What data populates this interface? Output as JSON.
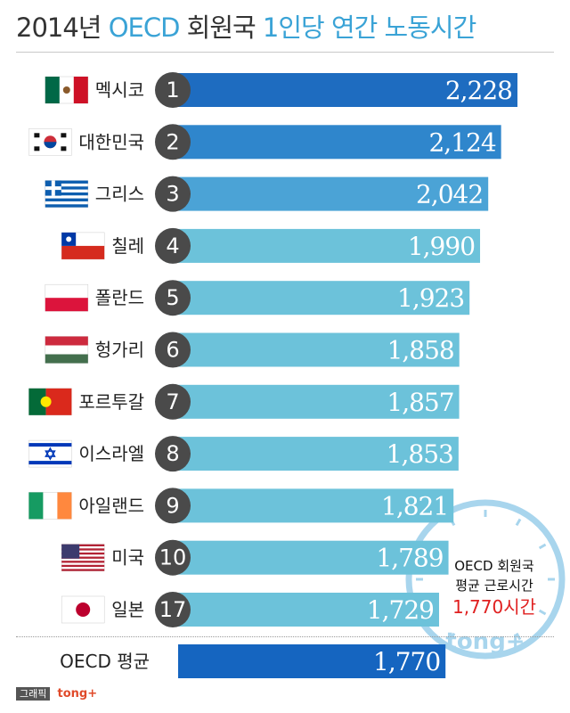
{
  "header": {
    "title_part1": "2014년",
    "title_hl1": "OECD",
    "title_part2": "회원국",
    "title_hl2": "1인당 연간 노동시간"
  },
  "colors": {
    "top": "#1e6cc0",
    "second": "#2f86cc",
    "third": "#4ba3d6",
    "rest": "#6cc2da",
    "avg": "#1565c0",
    "rank_circle": "#4a4a4a",
    "watermark": "#8cc7e8"
  },
  "chart_data": {
    "type": "bar",
    "orientation": "horizontal",
    "categories": [
      "멕시코",
      "대한민국",
      "그리스",
      "칠레",
      "폴란드",
      "헝가리",
      "포르투갈",
      "이스라엘",
      "아일랜드",
      "미국",
      "일본",
      "OECD 평균"
    ],
    "ranks": [
      "1",
      "2",
      "3",
      "4",
      "5",
      "6",
      "7",
      "8",
      "9",
      "10",
      "17",
      ""
    ],
    "values": [
      2228,
      2124,
      2042,
      1990,
      1923,
      1858,
      1857,
      1853,
      1821,
      1789,
      1729,
      1770
    ],
    "value_labels": [
      "2,228",
      "2,124",
      "2,042",
      "1,990",
      "1,923",
      "1,858",
      "1,857",
      "1,853",
      "1,821",
      "1,789",
      "1,729",
      "1,770"
    ],
    "flags": [
      "mexico-flag",
      "south-korea-flag",
      "greece-flag",
      "chile-flag",
      "poland-flag",
      "hungary-flag",
      "portugal-flag",
      "israel-flag",
      "ireland-flag",
      "usa-flag",
      "japan-flag",
      ""
    ],
    "average_value": 1770
  },
  "avg_note": {
    "line1": "OECD 회원국",
    "line2": "평균 근로시간",
    "line3": "1,770시간"
  },
  "watermark": "tong+",
  "footer": {
    "tag": "그래픽",
    "brand": "tong+"
  }
}
